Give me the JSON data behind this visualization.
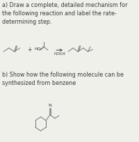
{
  "bg_color": "#f0f0eb",
  "text_color": "#3a3a3a",
  "line_color": "#7a7a7a",
  "title_a": "a) Draw a complete, detailed mechanism for\nthe following reaction and label the rate-\ndetermining step.",
  "title_b": "b) Show how the following molecule can be\nsynthesized from benzene",
  "reagent": "H2SO4",
  "font_size_text": 5.8,
  "font_size_small": 4.2,
  "lw": 0.75
}
